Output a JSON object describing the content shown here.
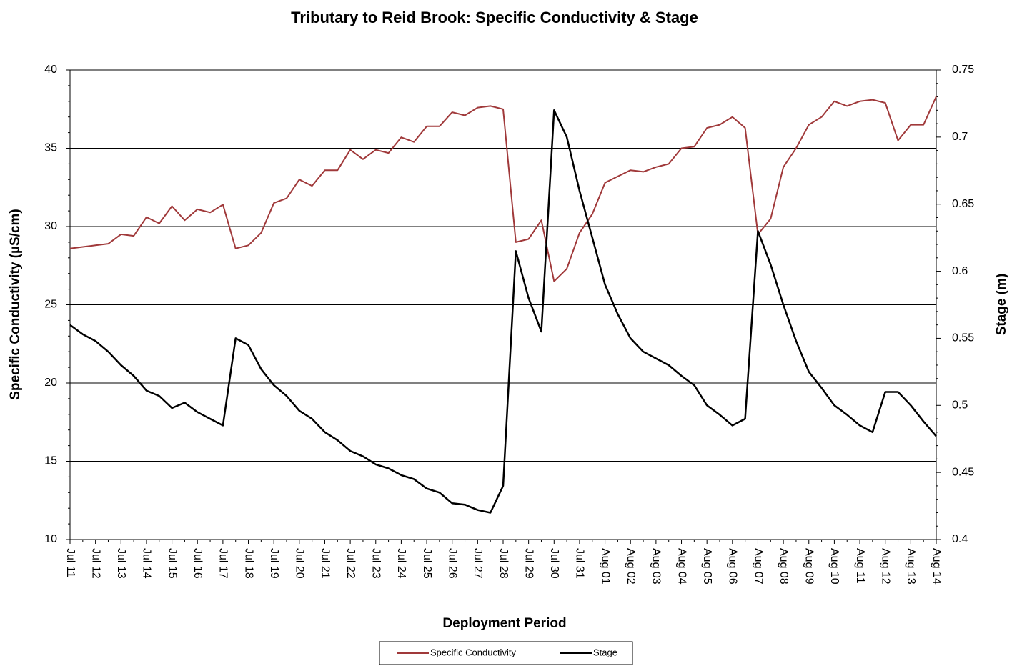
{
  "chart_data": {
    "type": "line",
    "title": "Tributary to Reid Brook: Specific Conductivity & Stage",
    "x_label": "Deployment Period",
    "y_label": "Specific Conductivity (µS/cm)",
    "y2_label": "Stage (m)",
    "categories": [
      "Jul 11",
      null,
      "Jul 12",
      null,
      "Jul 13",
      null,
      "Jul 14",
      null,
      "Jul 15",
      null,
      "Jul 16",
      null,
      "Jul 17",
      null,
      "Jul 18",
      null,
      "Jul 19",
      null,
      "Jul 20",
      null,
      "Jul 21",
      null,
      "Jul 22",
      null,
      "Jul 23",
      null,
      "Jul 24",
      null,
      "Jul 25",
      null,
      "Jul 26",
      null,
      "Jul 27",
      null,
      "Jul 28",
      null,
      "Jul 29",
      null,
      "Jul 30",
      null,
      "Jul 31",
      null,
      "Aug 01",
      null,
      "Aug 02",
      null,
      "Aug 03",
      null,
      "Aug 04",
      null,
      "Aug 05",
      null,
      "Aug 06",
      null,
      "Aug 07",
      null,
      "Aug 08",
      null,
      "Aug 09",
      null,
      "Aug 10",
      null,
      "Aug 11",
      null,
      "Aug 12",
      null,
      "Aug 13",
      null,
      "Aug 14"
    ],
    "series": [
      {
        "name": "Specific Conductivity",
        "color": "#a0393a",
        "values": [
          28.6,
          28.7,
          28.8,
          28.9,
          29.5,
          29.4,
          30.6,
          30.2,
          31.3,
          30.4,
          31.1,
          30.9,
          31.4,
          28.6,
          28.8,
          29.6,
          31.5,
          31.8,
          33.0,
          32.6,
          33.6,
          33.6,
          34.9,
          34.3,
          34.9,
          34.7,
          35.7,
          35.4,
          36.4,
          36.4,
          37.3,
          37.1,
          37.6,
          37.7,
          37.5,
          29.0,
          29.2,
          30.4,
          26.5,
          27.3,
          29.6,
          30.8,
          32.8,
          33.2,
          33.6,
          33.5,
          33.8,
          34.0,
          35.0,
          35.1,
          36.3,
          36.5,
          37.0,
          36.3,
          29.5,
          30.5,
          33.8,
          35.0,
          36.5,
          37.0,
          38.0,
          37.7,
          38.0,
          38.1,
          37.9,
          35.5,
          36.5,
          36.5,
          38.3
        ]
      },
      {
        "name": "Stage",
        "color": "#000000",
        "axis": "y2",
        "values": [
          0.56,
          0.553,
          0.548,
          0.54,
          0.53,
          0.522,
          0.511,
          0.507,
          0.498,
          0.502,
          0.495,
          0.49,
          0.485,
          0.55,
          0.545,
          0.527,
          0.515,
          0.507,
          0.496,
          0.49,
          0.48,
          0.474,
          0.466,
          0.462,
          0.456,
          0.453,
          0.448,
          0.445,
          0.438,
          0.435,
          0.427,
          0.426,
          0.422,
          0.42,
          0.44,
          0.615,
          0.58,
          0.555,
          0.72,
          0.7,
          0.66,
          0.625,
          0.59,
          0.568,
          0.55,
          0.54,
          0.535,
          0.53,
          0.522,
          0.515,
          0.5,
          0.493,
          0.485,
          0.49,
          0.63,
          0.605,
          0.575,
          0.548,
          0.525,
          0.513,
          0.5,
          0.493,
          0.485,
          0.48,
          0.51,
          0.51,
          0.5,
          0.488,
          0.477
        ]
      }
    ],
    "ylim": [
      10,
      40
    ],
    "yticks": [
      10,
      15,
      20,
      25,
      30,
      35,
      40
    ],
    "y2lim": [
      0.4,
      0.75
    ],
    "y2ticks": [
      0.4,
      0.45,
      0.5,
      0.55,
      0.6,
      0.65,
      0.7,
      0.75
    ],
    "grid": true,
    "legend": "bottom"
  }
}
